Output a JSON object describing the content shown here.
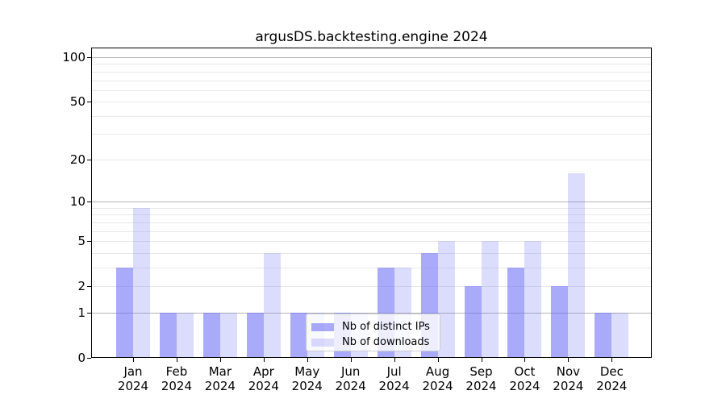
{
  "figure": {
    "background": "#ffffff"
  },
  "chart_data": {
    "type": "bar",
    "title": "argusDS.backtesting.engine 2024",
    "months": [
      "Jan",
      "Feb",
      "Mar",
      "Apr",
      "May",
      "Jun",
      "Jul",
      "Aug",
      "Sep",
      "Oct",
      "Nov",
      "Dec"
    ],
    "year_label": "2024",
    "series": [
      {
        "name": "Nb of distinct IPs",
        "color": "rgba(114,114,247,0.60)",
        "values": [
          3,
          1,
          1,
          1,
          1,
          1,
          3,
          4,
          2,
          3,
          2,
          1
        ]
      },
      {
        "name": "Nb of downloads",
        "color": "rgba(114,114,247,0.25)",
        "values": [
          9,
          1,
          1,
          4,
          1,
          1,
          3,
          5,
          5,
          5,
          16,
          1
        ]
      }
    ],
    "yscale": "log1p",
    "ylim": [
      0,
      116.2
    ],
    "yticks": [
      0,
      1,
      2,
      5,
      10,
      20,
      50,
      100
    ],
    "major_gridlines": [
      1,
      10,
      100
    ],
    "minor_gridlines": [
      2,
      3,
      4,
      5,
      6,
      7,
      8,
      9,
      20,
      30,
      40,
      50,
      60,
      70,
      80,
      90
    ],
    "grid": "on",
    "legend_position": "lower center",
    "colors": {
      "major_grid": "#b4b4b4",
      "minor_grid": "#e8e8e8",
      "axis": "#000000",
      "text": "#000000"
    }
  }
}
